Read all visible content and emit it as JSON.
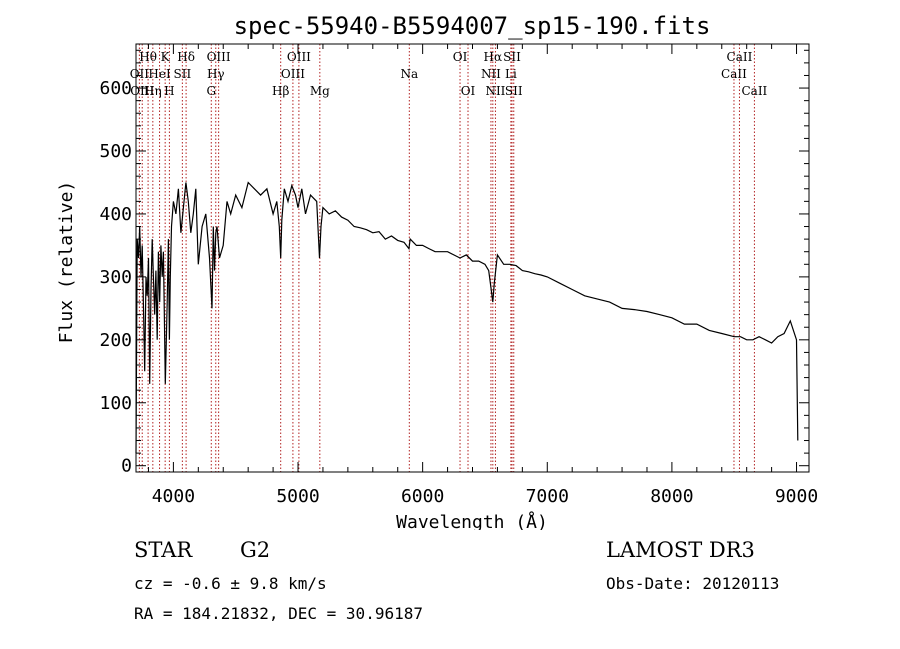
{
  "chart_data": {
    "type": "line",
    "title": "spec-55940-B5594007_sp15-190.fits",
    "xlabel": "Wavelength (Å)",
    "ylabel": "Flux (relative)",
    "xlim": [
      3700,
      9100
    ],
    "ylim": [
      -10,
      670
    ],
    "xticks": [
      4000,
      5000,
      6000,
      7000,
      8000,
      9000
    ],
    "yticks": [
      0,
      100,
      200,
      300,
      400,
      500,
      600
    ],
    "xtick_labels": [
      "4000",
      "5000",
      "6000",
      "7000",
      "8000",
      "9000"
    ],
    "ytick_labels": [
      "0",
      "100",
      "200",
      "300",
      "400",
      "500",
      "600"
    ],
    "series": [
      {
        "name": "flux",
        "x": [
          3700,
          3710,
          3720,
          3730,
          3740,
          3750,
          3760,
          3770,
          3780,
          3790,
          3800,
          3810,
          3820,
          3830,
          3840,
          3850,
          3860,
          3870,
          3880,
          3890,
          3900,
          3910,
          3920,
          3930,
          3935,
          3940,
          3950,
          3960,
          3968,
          3975,
          3985,
          4000,
          4020,
          4040,
          4060,
          4080,
          4100,
          4120,
          4140,
          4160,
          4180,
          4200,
          4230,
          4260,
          4290,
          4310,
          4320,
          4330,
          4340,
          4350,
          4370,
          4400,
          4430,
          4460,
          4500,
          4550,
          4600,
          4650,
          4700,
          4750,
          4800,
          4830,
          4850,
          4861,
          4870,
          4890,
          4920,
          4950,
          4980,
          5000,
          5030,
          5060,
          5100,
          5150,
          5172,
          5184,
          5200,
          5250,
          5300,
          5350,
          5400,
          5450,
          5500,
          5550,
          5600,
          5650,
          5700,
          5750,
          5800,
          5850,
          5890,
          5900,
          5950,
          6000,
          6050,
          6100,
          6150,
          6200,
          6250,
          6300,
          6350,
          6400,
          6450,
          6500,
          6530,
          6550,
          6563,
          6575,
          6600,
          6650,
          6700,
          6750,
          6800,
          6850,
          6900,
          6950,
          7000,
          7100,
          7200,
          7300,
          7400,
          7500,
          7600,
          7700,
          7800,
          7900,
          8000,
          8100,
          8200,
          8300,
          8400,
          8500,
          8550,
          8600,
          8650,
          8700,
          8750,
          8800,
          8850,
          8900,
          8950,
          9000,
          9010
        ],
        "y": [
          20,
          360,
          330,
          380,
          300,
          350,
          250,
          150,
          300,
          270,
          330,
          130,
          280,
          360,
          300,
          240,
          310,
          200,
          340,
          260,
          350,
          300,
          340,
          200,
          130,
          170,
          260,
          360,
          200,
          300,
          380,
          420,
          400,
          440,
          370,
          410,
          450,
          420,
          370,
          400,
          440,
          320,
          380,
          400,
          330,
          250,
          380,
          310,
          370,
          380,
          330,
          350,
          420,
          400,
          430,
          410,
          450,
          440,
          430,
          440,
          400,
          420,
          380,
          330,
          390,
          440,
          420,
          445,
          430,
          410,
          440,
          400,
          430,
          420,
          330,
          380,
          410,
          400,
          405,
          395,
          390,
          380,
          378,
          375,
          370,
          372,
          360,
          365,
          358,
          355,
          345,
          360,
          350,
          350,
          345,
          340,
          340,
          340,
          335,
          330,
          335,
          325,
          325,
          320,
          310,
          280,
          260,
          290,
          335,
          320,
          320,
          318,
          310,
          308,
          305,
          303,
          300,
          290,
          280,
          270,
          265,
          260,
          250,
          248,
          245,
          240,
          235,
          225,
          225,
          215,
          210,
          205,
          205,
          200,
          200,
          205,
          200,
          195,
          205,
          210,
          230,
          200,
          40
        ]
      }
    ],
    "spectral_lines": [
      {
        "label": "Hθ",
        "wl": 3797,
        "row": 1
      },
      {
        "label": "OII",
        "wl": 3727,
        "row": 2
      },
      {
        "label": "OIII",
        "wl": 3750,
        "row": 3
      },
      {
        "label": "Hη",
        "wl": 3835,
        "row": 3
      },
      {
        "label": "K",
        "wl": 3934,
        "row": 1
      },
      {
        "label": "HeI",
        "wl": 3889,
        "row": 2
      },
      {
        "label": "H",
        "wl": 3968,
        "row": 3
      },
      {
        "label": "Hδ",
        "wl": 4102,
        "row": 1
      },
      {
        "label": "SII",
        "wl": 4072,
        "row": 2
      },
      {
        "label": "OIII",
        "wl": 4363,
        "row": 1
      },
      {
        "label": "Hγ",
        "wl": 4340,
        "row": 2
      },
      {
        "label": "G",
        "wl": 4304,
        "row": 3
      },
      {
        "label": "Hβ",
        "wl": 4861,
        "row": 3
      },
      {
        "label": "OIII",
        "wl": 5007,
        "row": 1
      },
      {
        "label": "OIII",
        "wl": 4959,
        "row": 2
      },
      {
        "label": "Mg",
        "wl": 5175,
        "row": 3
      },
      {
        "label": "Na",
        "wl": 5893,
        "row": 2
      },
      {
        "label": "OI",
        "wl": 6300,
        "row": 1
      },
      {
        "label": "OI",
        "wl": 6364,
        "row": 3
      },
      {
        "label": "Hα",
        "wl": 6563,
        "row": 1
      },
      {
        "label": "NII",
        "wl": 6548,
        "row": 2
      },
      {
        "label": "NII",
        "wl": 6584,
        "row": 3
      },
      {
        "label": "SII",
        "wl": 6717,
        "row": 1
      },
      {
        "label": "Li",
        "wl": 6708,
        "row": 2
      },
      {
        "label": "SII",
        "wl": 6731,
        "row": 3
      },
      {
        "label": "CaII",
        "wl": 8542,
        "row": 1
      },
      {
        "label": "CaII",
        "wl": 8498,
        "row": 2
      },
      {
        "label": "CaII",
        "wl": 8662,
        "row": 3
      }
    ],
    "line_color": "#b22222",
    "grid": false
  },
  "info": {
    "class": "STAR",
    "subclass": "G2",
    "survey": "LAMOST DR3",
    "cz": "cz = -0.6 ± 9.8 km/s",
    "obs_date": "Obs-Date: 20120113",
    "radec": "RA = 184.21832, DEC =  30.96187"
  }
}
